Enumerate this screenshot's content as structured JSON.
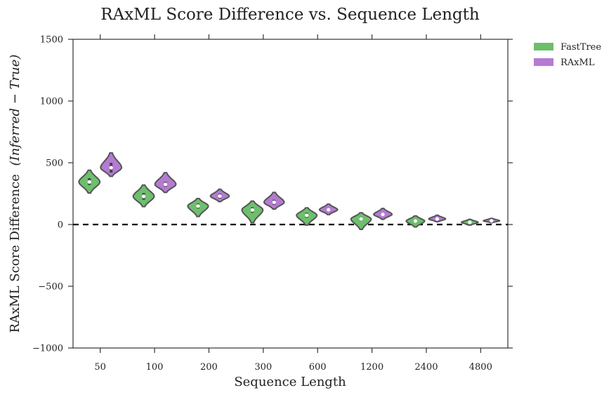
{
  "chart_data": {
    "type": "violin",
    "title": "RAxML Score Difference vs. Sequence Length",
    "xlabel": "Sequence Length",
    "ylabel": "RAxML Score Difference",
    "ylabel_math": "(Inferred − True)",
    "categories": [
      "50",
      "100",
      "200",
      "300",
      "600",
      "1200",
      "2400",
      "4800"
    ],
    "ylim": [
      -1000,
      1500
    ],
    "yticks": [
      -1000,
      -500,
      0,
      500,
      1000,
      1500
    ],
    "ytick_labels": [
      "−1000",
      "−500",
      "0",
      "500",
      "1000",
      "1500"
    ],
    "reference_line": 0,
    "legend": {
      "position": "outside-top-right"
    },
    "series": [
      {
        "name": "FastTree",
        "color": "#6dbf6d",
        "medians": [
          345,
          228,
          150,
          118,
          75,
          45,
          28,
          18
        ],
        "mins": [
          255,
          145,
          65,
          15,
          -5,
          -40,
          -20,
          -5
        ],
        "maxs": [
          440,
          320,
          210,
          190,
          135,
          95,
          70,
          42
        ],
        "q1": [
          320,
          200,
          130,
          95,
          55,
          30,
          15,
          10
        ],
        "q3": [
          375,
          255,
          170,
          140,
          95,
          60,
          40,
          25
        ]
      },
      {
        "name": "RAxML",
        "color": "#b57bd3",
        "medians": [
          460,
          325,
          230,
          180,
          120,
          82,
          45,
          30
        ],
        "mins": [
          390,
          260,
          185,
          125,
          80,
          42,
          22,
          15
        ],
        "maxs": [
          580,
          420,
          285,
          260,
          165,
          130,
          75,
          50
        ],
        "q1": [
          420,
          305,
          210,
          160,
          105,
          70,
          38,
          25
        ],
        "q3": [
          500,
          345,
          250,
          200,
          135,
          95,
          55,
          36
        ]
      }
    ]
  }
}
